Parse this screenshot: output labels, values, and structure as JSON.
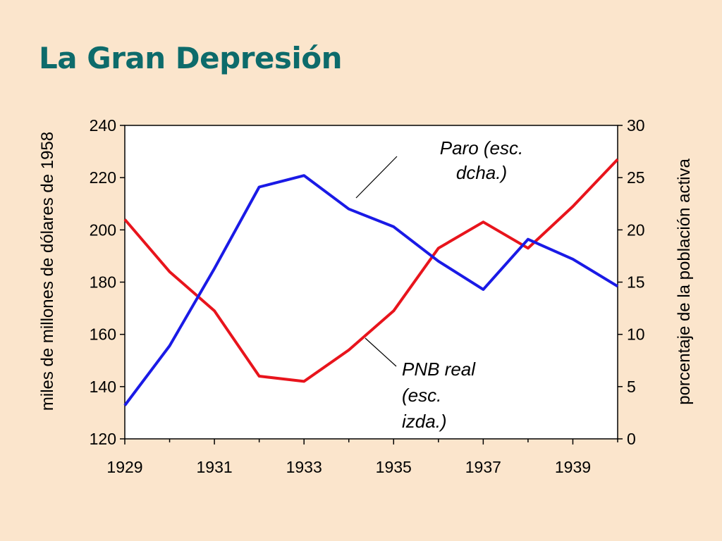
{
  "title": "La Gran Depresión",
  "chart_data": {
    "type": "line",
    "x": [
      1929,
      1930,
      1931,
      1932,
      1933,
      1934,
      1935,
      1936,
      1937,
      1938,
      1939,
      1940
    ],
    "x_ticks": [
      "1929",
      "1931",
      "1933",
      "1935",
      "1937",
      "1939"
    ],
    "xlim": [
      1929,
      1940
    ],
    "y_left": {
      "label": "miles de millones de dólares de 1958",
      "ylim": [
        120,
        240
      ],
      "ticks": [
        "120",
        "140",
        "160",
        "180",
        "200",
        "220",
        "240"
      ]
    },
    "y_right": {
      "label": "porcentaje de la población activa",
      "ylim": [
        0,
        30
      ],
      "ticks": [
        "0",
        "5",
        "10",
        "15",
        "20",
        "25",
        "30"
      ]
    },
    "series": [
      {
        "name": "PNB real (esc. izda.)",
        "axis": "left",
        "color": "#e8141c",
        "values": [
          204,
          184,
          169,
          144,
          142,
          154,
          169,
          193,
          203,
          193,
          209,
          227
        ]
      },
      {
        "name": "Paro (esc. dcha.)",
        "axis": "right",
        "color": "#1a1ae6",
        "values": [
          3.2,
          8.9,
          16.3,
          24.1,
          25.2,
          22.0,
          20.3,
          17.0,
          14.3,
          19.1,
          17.2,
          14.6
        ]
      }
    ],
    "annotations": [
      {
        "lines": [
          "Paro (esc.",
          "dcha.)"
        ]
      },
      {
        "lines": [
          "PNB real",
          "(esc.",
          "izda.)"
        ]
      }
    ],
    "grid": false,
    "legend": "none"
  }
}
